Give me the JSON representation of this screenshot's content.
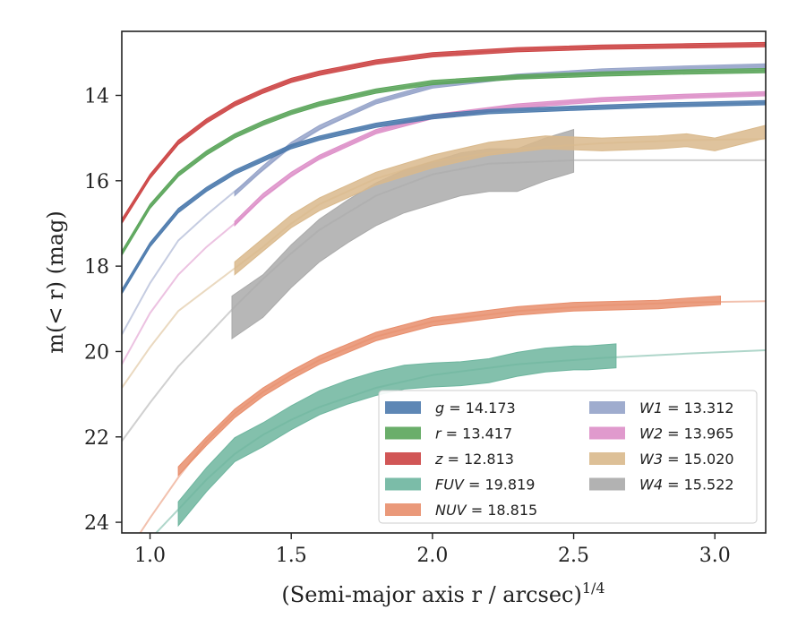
{
  "chart_data": {
    "type": "line",
    "title": "",
    "xlabel": "(Semi-major axis r / arcsec)",
    "xlabel_sup": "1/4",
    "ylabel": "m(< r) (mag)",
    "xlim": [
      0.9,
      3.18
    ],
    "ylim": [
      24.25,
      12.5
    ],
    "y_inverted": true,
    "grid": false,
    "legend_position": "lower-right",
    "legend_columns": 2,
    "xticks": [
      {
        "value": 1.0,
        "label": "1.0"
      },
      {
        "value": 1.5,
        "label": "1.5"
      },
      {
        "value": 2.0,
        "label": "2.0"
      },
      {
        "value": 2.5,
        "label": "2.5"
      },
      {
        "value": 3.0,
        "label": "3.0"
      }
    ],
    "yticks": [
      {
        "value": 14,
        "label": "14"
      },
      {
        "value": 16,
        "label": "16"
      },
      {
        "value": 18,
        "label": "18"
      },
      {
        "value": 20,
        "label": "20"
      },
      {
        "value": 22,
        "label": "22"
      },
      {
        "value": 24,
        "label": "24"
      }
    ],
    "series": [
      {
        "name": "g = 14.173",
        "var": "g",
        "val": "14.173",
        "color": "#4c7aad",
        "halfwidth": 0.05,
        "model": [
          [
            0.9,
            18.6
          ],
          [
            1.0,
            17.5
          ],
          [
            1.1,
            16.7
          ],
          [
            1.2,
            16.2
          ],
          [
            1.3,
            15.8
          ],
          [
            1.4,
            15.5
          ],
          [
            1.5,
            15.2
          ],
          [
            1.6,
            15.0
          ],
          [
            1.8,
            14.7
          ],
          [
            2.0,
            14.5
          ],
          [
            2.2,
            14.38
          ],
          [
            2.5,
            14.3
          ],
          [
            2.8,
            14.23
          ],
          [
            3.18,
            14.17
          ]
        ],
        "band": [
          [
            0.9,
            18.6
          ],
          [
            1.0,
            17.5
          ],
          [
            1.1,
            16.7
          ],
          [
            1.2,
            16.2
          ],
          [
            1.3,
            15.8
          ],
          [
            1.4,
            15.5
          ],
          [
            1.5,
            15.2
          ],
          [
            1.6,
            15.0
          ],
          [
            1.8,
            14.7
          ],
          [
            2.0,
            14.5
          ],
          [
            2.2,
            14.38
          ],
          [
            2.5,
            14.3
          ],
          [
            2.8,
            14.23
          ],
          [
            3.18,
            14.17
          ]
        ]
      },
      {
        "name": "r = 13.417",
        "var": "r",
        "val": "13.417",
        "color": "#5aa55a",
        "halfwidth": 0.05,
        "model": [
          [
            0.9,
            17.7
          ],
          [
            1.0,
            16.6
          ],
          [
            1.1,
            15.85
          ],
          [
            1.2,
            15.35
          ],
          [
            1.3,
            14.95
          ],
          [
            1.4,
            14.65
          ],
          [
            1.5,
            14.4
          ],
          [
            1.6,
            14.2
          ],
          [
            1.8,
            13.9
          ],
          [
            2.0,
            13.7
          ],
          [
            2.3,
            13.57
          ],
          [
            2.6,
            13.5
          ],
          [
            2.9,
            13.45
          ],
          [
            3.18,
            13.42
          ]
        ],
        "band": [
          [
            0.9,
            17.7
          ],
          [
            1.0,
            16.6
          ],
          [
            1.1,
            15.85
          ],
          [
            1.2,
            15.35
          ],
          [
            1.3,
            14.95
          ],
          [
            1.4,
            14.65
          ],
          [
            1.5,
            14.4
          ],
          [
            1.6,
            14.2
          ],
          [
            1.8,
            13.9
          ],
          [
            2.0,
            13.7
          ],
          [
            2.3,
            13.57
          ],
          [
            2.6,
            13.5
          ],
          [
            2.9,
            13.45
          ],
          [
            3.18,
            13.42
          ]
        ]
      },
      {
        "name": "z = 12.813",
        "var": "z",
        "val": "12.813",
        "color": "#cc4444",
        "halfwidth": 0.05,
        "model": [
          [
            0.9,
            16.95
          ],
          [
            1.0,
            15.9
          ],
          [
            1.1,
            15.1
          ],
          [
            1.2,
            14.6
          ],
          [
            1.3,
            14.2
          ],
          [
            1.4,
            13.9
          ],
          [
            1.5,
            13.65
          ],
          [
            1.6,
            13.48
          ],
          [
            1.8,
            13.22
          ],
          [
            2.0,
            13.05
          ],
          [
            2.3,
            12.93
          ],
          [
            2.6,
            12.87
          ],
          [
            2.9,
            12.84
          ],
          [
            3.18,
            12.81
          ]
        ],
        "band": [
          [
            0.9,
            16.95
          ],
          [
            1.0,
            15.9
          ],
          [
            1.1,
            15.1
          ],
          [
            1.2,
            14.6
          ],
          [
            1.3,
            14.2
          ],
          [
            1.4,
            13.9
          ],
          [
            1.5,
            13.65
          ],
          [
            1.6,
            13.48
          ],
          [
            1.8,
            13.22
          ],
          [
            2.0,
            13.05
          ],
          [
            2.3,
            12.93
          ],
          [
            2.6,
            12.87
          ],
          [
            2.9,
            12.84
          ],
          [
            3.18,
            12.81
          ]
        ]
      },
      {
        "name": "FUV = 19.819",
        "var": "FUV",
        "val": "19.819",
        "color": "#6db59e",
        "halfwidth": 0.28,
        "model": [
          [
            0.9,
            25.0
          ],
          [
            1.0,
            24.4
          ],
          [
            1.1,
            23.7
          ],
          [
            1.2,
            23.0
          ],
          [
            1.3,
            22.4
          ],
          [
            1.4,
            21.95
          ],
          [
            1.5,
            21.6
          ],
          [
            1.6,
            21.3
          ],
          [
            1.8,
            20.85
          ],
          [
            2.0,
            20.55
          ],
          [
            2.3,
            20.3
          ],
          [
            2.6,
            20.15
          ],
          [
            2.9,
            20.05
          ],
          [
            3.18,
            19.97
          ]
        ],
        "band": [
          [
            1.1,
            23.8
          ],
          [
            1.2,
            23.0
          ],
          [
            1.3,
            22.3
          ],
          [
            1.4,
            21.95
          ],
          [
            1.5,
            21.55
          ],
          [
            1.6,
            21.2
          ],
          [
            1.7,
            20.95
          ],
          [
            1.8,
            20.75
          ],
          [
            1.9,
            20.6
          ],
          [
            2.0,
            20.55
          ],
          [
            2.1,
            20.52
          ],
          [
            2.2,
            20.45
          ],
          [
            2.3,
            20.3
          ],
          [
            2.4,
            20.2
          ],
          [
            2.5,
            20.15
          ],
          [
            2.55,
            20.15
          ],
          [
            2.65,
            20.1
          ]
        ]
      },
      {
        "name": "NUV = 18.815",
        "var": "NUV",
        "val": "18.815",
        "color": "#e88e6c",
        "halfwidth": 0.1,
        "model": [
          [
            0.9,
            24.9
          ],
          [
            1.0,
            23.9
          ],
          [
            1.1,
            22.95
          ],
          [
            1.2,
            22.1
          ],
          [
            1.3,
            21.45
          ],
          [
            1.4,
            20.95
          ],
          [
            1.5,
            20.55
          ],
          [
            1.6,
            20.2
          ],
          [
            1.8,
            19.65
          ],
          [
            2.0,
            19.3
          ],
          [
            2.3,
            19.05
          ],
          [
            2.6,
            18.92
          ],
          [
            2.9,
            18.85
          ],
          [
            3.18,
            18.82
          ]
        ],
        "band": [
          [
            1.1,
            22.8
          ],
          [
            1.2,
            22.1
          ],
          [
            1.3,
            21.45
          ],
          [
            1.4,
            20.95
          ],
          [
            1.5,
            20.55
          ],
          [
            1.6,
            20.2
          ],
          [
            1.8,
            19.65
          ],
          [
            2.0,
            19.3
          ],
          [
            2.3,
            19.05
          ],
          [
            2.5,
            18.95
          ],
          [
            2.8,
            18.9
          ],
          [
            2.9,
            18.85
          ],
          [
            3.02,
            18.8
          ]
        ]
      },
      {
        "name": "W1 = 13.312",
        "var": "W1",
        "val": "13.312",
        "color": "#95a3c9",
        "halfwidth": 0.05,
        "model": [
          [
            0.9,
            19.6
          ],
          [
            1.0,
            18.4
          ],
          [
            1.1,
            17.4
          ],
          [
            1.2,
            16.8
          ],
          [
            1.3,
            16.25
          ],
          [
            1.4,
            15.75
          ],
          [
            1.5,
            15.2
          ],
          [
            1.6,
            14.8
          ],
          [
            1.8,
            14.15
          ],
          [
            2.0,
            13.78
          ],
          [
            2.3,
            13.55
          ],
          [
            2.6,
            13.43
          ],
          [
            2.9,
            13.36
          ],
          [
            3.18,
            13.31
          ]
        ],
        "band": [
          [
            1.3,
            16.3
          ],
          [
            1.4,
            15.7
          ],
          [
            1.5,
            15.15
          ],
          [
            1.6,
            14.75
          ],
          [
            1.8,
            14.15
          ],
          [
            2.0,
            13.78
          ],
          [
            2.3,
            13.55
          ],
          [
            2.6,
            13.43
          ],
          [
            2.9,
            13.36
          ],
          [
            3.18,
            13.31
          ]
        ]
      },
      {
        "name": "W2 = 13.965",
        "var": "W2",
        "val": "13.965",
        "color": "#dd8fc8",
        "halfwidth": 0.05,
        "model": [
          [
            0.9,
            20.3
          ],
          [
            1.0,
            19.1
          ],
          [
            1.1,
            18.2
          ],
          [
            1.2,
            17.55
          ],
          [
            1.3,
            17.0
          ],
          [
            1.4,
            16.4
          ],
          [
            1.5,
            15.9
          ],
          [
            1.6,
            15.45
          ],
          [
            1.8,
            14.85
          ],
          [
            2.0,
            14.5
          ],
          [
            2.3,
            14.25
          ],
          [
            2.6,
            14.1
          ],
          [
            2.9,
            14.02
          ],
          [
            3.18,
            13.96
          ]
        ],
        "band": [
          [
            1.3,
            17.0
          ],
          [
            1.4,
            16.35
          ],
          [
            1.5,
            15.85
          ],
          [
            1.6,
            15.45
          ],
          [
            1.8,
            14.85
          ],
          [
            2.0,
            14.5
          ],
          [
            2.3,
            14.25
          ],
          [
            2.6,
            14.1
          ],
          [
            2.9,
            14.02
          ],
          [
            3.18,
            13.96
          ]
        ]
      },
      {
        "name": "W3 = 15.020",
        "var": "W3",
        "val": "15.020",
        "color": "#d9b98c",
        "halfwidth": 0.15,
        "model": [
          [
            0.9,
            20.85
          ],
          [
            1.0,
            19.9
          ],
          [
            1.1,
            19.05
          ],
          [
            1.2,
            18.55
          ],
          [
            1.3,
            18.05
          ],
          [
            1.4,
            17.55
          ],
          [
            1.5,
            17.0
          ],
          [
            1.6,
            16.55
          ],
          [
            1.8,
            15.95
          ],
          [
            2.0,
            15.55
          ],
          [
            2.3,
            15.25
          ],
          [
            2.6,
            15.12
          ],
          [
            2.9,
            15.05
          ],
          [
            3.18,
            15.02
          ]
        ],
        "band": [
          [
            1.3,
            18.05
          ],
          [
            1.4,
            17.5
          ],
          [
            1.5,
            16.95
          ],
          [
            1.6,
            16.55
          ],
          [
            1.8,
            15.95
          ],
          [
            1.9,
            15.75
          ],
          [
            2.0,
            15.55
          ],
          [
            2.2,
            15.25
          ],
          [
            2.4,
            15.1
          ],
          [
            2.6,
            15.15
          ],
          [
            2.8,
            15.1
          ],
          [
            2.9,
            15.05
          ],
          [
            3.0,
            15.15
          ],
          [
            3.18,
            14.85
          ]
        ]
      },
      {
        "name": "W4 = 15.522",
        "var": "W4",
        "val": "15.522",
        "color": "#aaaaaa",
        "halfwidth": 0.5,
        "model": [
          [
            0.9,
            22.1
          ],
          [
            1.0,
            21.2
          ],
          [
            1.1,
            20.35
          ],
          [
            1.2,
            19.65
          ],
          [
            1.3,
            18.95
          ],
          [
            1.4,
            18.3
          ],
          [
            1.5,
            17.7
          ],
          [
            1.6,
            17.15
          ],
          [
            1.8,
            16.35
          ],
          [
            2.0,
            15.85
          ],
          [
            2.2,
            15.6
          ],
          [
            2.5,
            15.52
          ],
          [
            2.8,
            15.52
          ],
          [
            3.18,
            15.52
          ]
        ],
        "band": [
          [
            1.29,
            19.2
          ],
          [
            1.4,
            18.7
          ],
          [
            1.5,
            18.0
          ],
          [
            1.6,
            17.4
          ],
          [
            1.7,
            16.95
          ],
          [
            1.8,
            16.55
          ],
          [
            1.9,
            16.25
          ],
          [
            2.0,
            16.05
          ],
          [
            2.1,
            15.85
          ],
          [
            2.2,
            15.75
          ],
          [
            2.3,
            15.75
          ],
          [
            2.4,
            15.5
          ],
          [
            2.5,
            15.3
          ]
        ]
      }
    ]
  }
}
